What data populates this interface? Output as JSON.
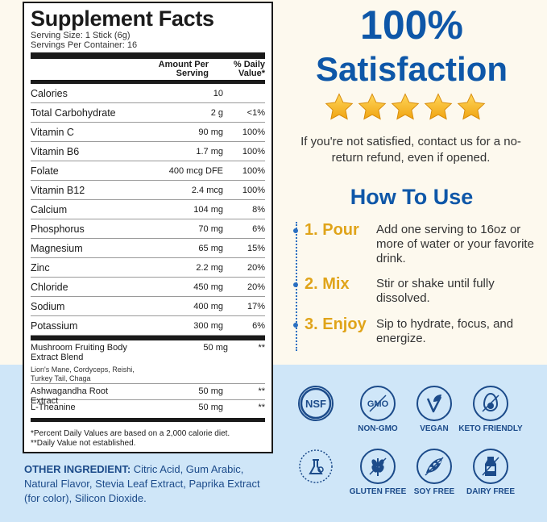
{
  "facts": {
    "title": "Supplement Facts",
    "serving_size": "Serving Size: 1 Stick (6g)",
    "servings_per_container": "Servings Per Container: 16",
    "col_amount": "Amount Per Serving",
    "col_dv": "% Daily Value*",
    "rows": [
      {
        "name": "Calories",
        "amount": "10",
        "dv": ""
      },
      {
        "name": "Total Carbohydrate",
        "amount": "2 g",
        "dv": "<1%"
      },
      {
        "name": "Vitamin C",
        "amount": "90 mg",
        "dv": "100%"
      },
      {
        "name": "Vitamin B6",
        "amount": "1.7 mg",
        "dv": "100%"
      },
      {
        "name": "Folate",
        "amount": "400 mcg DFE",
        "dv": "100%"
      },
      {
        "name": "Vitamin B12",
        "amount": "2.4 mcg",
        "dv": "100%"
      },
      {
        "name": "Calcium",
        "amount": "104 mg",
        "dv": "8%"
      },
      {
        "name": "Phosphorus",
        "amount": "70 mg",
        "dv": "6%"
      },
      {
        "name": "Magnesium",
        "amount": "65 mg",
        "dv": "15%"
      },
      {
        "name": "Zinc",
        "amount": "2.2 mg",
        "dv": "20%"
      },
      {
        "name": "Chloride",
        "amount": "450 mg",
        "dv": "20%"
      },
      {
        "name": "Sodium",
        "amount": "400 mg",
        "dv": "17%"
      },
      {
        "name": "Potassium",
        "amount": "300 mg",
        "dv": "6%"
      }
    ],
    "blend_name": "Mushroom Fruiting Body Extract Blend",
    "blend_amount": "50 mg",
    "blend_dv": "**",
    "blend_sub": "Lion's Mane, Cordyceps, Reishi, Turkey Tail, Chaga",
    "ash_name": "Ashwagandha Root Extract",
    "ash_amount": "50 mg",
    "ash_dv": "**",
    "thea_name": "L-Theanine",
    "thea_amount": "50 mg",
    "thea_dv": "**",
    "footnote1": "*Percent Daily Values are based on a 2,000 calorie diet.",
    "footnote2": "**Daily Value not established."
  },
  "other": {
    "label": "OTHER INGREDIENT:",
    "text": " Citric Acid, Gum Arabic, Natural Flavor, Stevia Leaf Extract, Paprika Extract (for color), Silicon Dioxide."
  },
  "satisfaction": {
    "percent": "100%",
    "word": "Satisfaction",
    "rating": 5,
    "text": "If you're not satisfied, contact us for a no-return refund, even if opened."
  },
  "howto": {
    "title": "How To Use",
    "steps": [
      {
        "label": "1. Pour",
        "text": "Add one serving to 16oz or more of water or your favorite drink."
      },
      {
        "label": "2. Mix",
        "text": "Stir or shake until fully dissolved."
      },
      {
        "label": "3. Enjoy",
        "text": "Sip to hydrate, focus, and energize."
      }
    ]
  },
  "badges": [
    {
      "icon": "nsf-icon",
      "label": "",
      "mark": "NSF"
    },
    {
      "icon": "non-gmo-icon",
      "label": "NON-GMO",
      "mark": "GMO"
    },
    {
      "icon": "vegan-leaf-icon",
      "label": "VEGAN",
      "mark": ""
    },
    {
      "icon": "avocado-icon",
      "label": "KETO FRIENDLY",
      "mark": ""
    },
    {
      "icon": "third-party-tested-icon",
      "label": "",
      "mark": "THIRD PARTY TESTED"
    },
    {
      "icon": "wheat-icon",
      "label": "GLUTEN FREE",
      "mark": ""
    },
    {
      "icon": "soy-icon",
      "label": "SOY FREE",
      "mark": ""
    },
    {
      "icon": "milk-bottle-icon",
      "label": "DAIRY FREE",
      "mark": ""
    }
  ],
  "colors": {
    "brand_blue": "#0e57a8",
    "gold": "#e0a41a",
    "bottom_bg": "#cfe6f8",
    "top_bg": "#fdf9ee"
  }
}
